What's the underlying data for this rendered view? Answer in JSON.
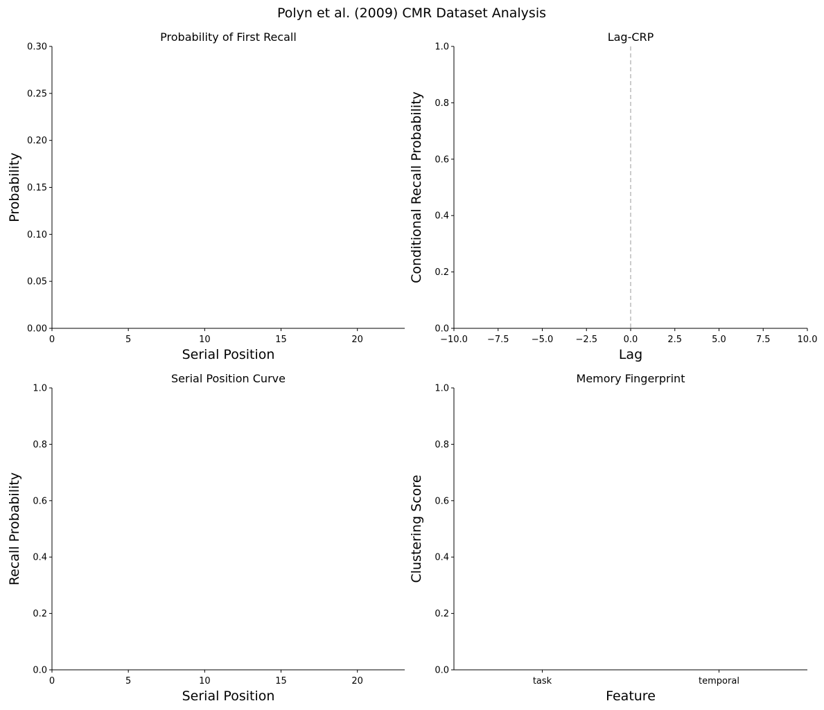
{
  "title": "Polyn et al. (2009) CMR Dataset Analysis",
  "chart_data": [
    {
      "type": "line",
      "title": "Probability of First Recall",
      "xlabel": "Serial Position",
      "ylabel": "Probability",
      "xlim": [
        0,
        23.1
      ],
      "xticks": [
        0,
        5,
        10,
        15,
        20
      ],
      "ylim": [
        0,
        0.3
      ],
      "yticks": [
        {
          "value": 0,
          "label": "0.00"
        },
        {
          "value": 0.05,
          "label": "0.05"
        },
        {
          "value": 0.1,
          "label": "0.10"
        },
        {
          "value": 0.15,
          "label": "0.15"
        },
        {
          "value": 0.2,
          "label": "0.20"
        },
        {
          "value": 0.25,
          "label": "0.25"
        },
        {
          "value": 0.3,
          "label": "0.30"
        }
      ]
    },
    {
      "type": "line",
      "title": "Lag-CRP",
      "xlabel": "Lag",
      "ylabel": "Conditional Recall Probability",
      "xlim": [
        -10,
        10
      ],
      "xticks": [
        {
          "value": -10,
          "label": "−10.0"
        },
        {
          "value": -7.5,
          "label": "−7.5"
        },
        {
          "value": -5,
          "label": "−5.0"
        },
        {
          "value": -2.5,
          "label": "−2.5"
        },
        {
          "value": 0,
          "label": "0.0"
        },
        {
          "value": 2.5,
          "label": "2.5"
        },
        {
          "value": 5,
          "label": "5.0"
        },
        {
          "value": 7.5,
          "label": "7.5"
        },
        {
          "value": 10,
          "label": "10.0"
        }
      ],
      "ylim": [
        0,
        1
      ],
      "yticks": [
        {
          "value": 0,
          "label": "0.0"
        },
        {
          "value": 0.2,
          "label": "0.2"
        },
        {
          "value": 0.4,
          "label": "0.4"
        },
        {
          "value": 0.6,
          "label": "0.6"
        },
        {
          "value": 0.8,
          "label": "0.8"
        },
        {
          "value": 1,
          "label": "1.0"
        }
      ],
      "vline": 0,
      "vline_color": "#bbbbbb"
    },
    {
      "type": "line",
      "title": "Serial Position Curve",
      "xlabel": "Serial Position",
      "ylabel": "Recall Probability",
      "xlim": [
        0,
        23.1
      ],
      "xticks": [
        0,
        5,
        10,
        15,
        20
      ],
      "ylim": [
        0,
        1
      ],
      "yticks": [
        {
          "value": 0,
          "label": "0.0"
        },
        {
          "value": 0.2,
          "label": "0.2"
        },
        {
          "value": 0.4,
          "label": "0.4"
        },
        {
          "value": 0.6,
          "label": "0.6"
        },
        {
          "value": 0.8,
          "label": "0.8"
        },
        {
          "value": 1,
          "label": "1.0"
        }
      ]
    },
    {
      "type": "bar",
      "title": "Memory Fingerprint",
      "xlabel": "Feature",
      "ylabel": "Clustering Score",
      "categories": [
        "task",
        "temporal"
      ],
      "xlim": [
        -0.5,
        1.5
      ],
      "ylim": [
        0,
        1
      ],
      "yticks": [
        {
          "value": 0,
          "label": "0.0"
        },
        {
          "value": 0.2,
          "label": "0.2"
        },
        {
          "value": 0.4,
          "label": "0.4"
        },
        {
          "value": 0.6,
          "label": "0.6"
        },
        {
          "value": 0.8,
          "label": "0.8"
        },
        {
          "value": 1,
          "label": "1.0"
        }
      ]
    }
  ]
}
